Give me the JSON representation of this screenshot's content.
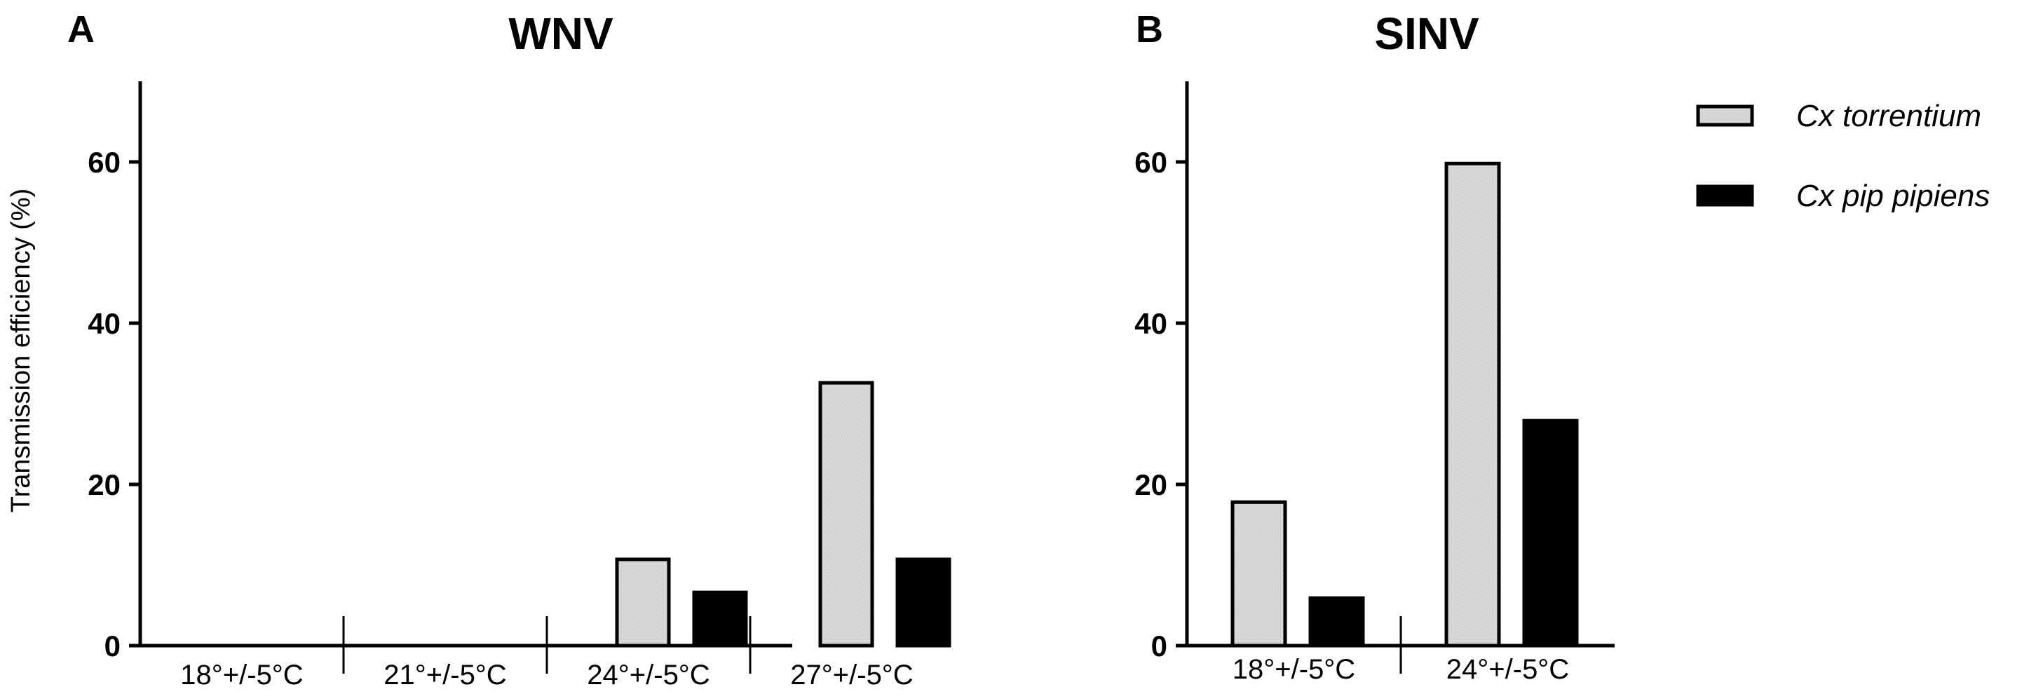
{
  "chart_data": [
    {
      "type": "bar",
      "panel": "A",
      "title": "WNV",
      "ylabel": "Transmission efficiency (%)",
      "xlabel": "",
      "ylim": [
        0,
        70
      ],
      "yticks": [
        0,
        20,
        40,
        60
      ],
      "categories": [
        "18°+/-5°C",
        "21°+/-5°C",
        "24°+/-5°C",
        "27°+/-5°C"
      ],
      "series": [
        {
          "name": "Cx torrentium",
          "color": "#d9d9d9",
          "values": [
            0,
            0,
            10.7,
            32.6
          ]
        },
        {
          "name": "Cx pip pipiens",
          "color": "#000000",
          "values": [
            0,
            0,
            6.6,
            10.7
          ]
        }
      ]
    },
    {
      "type": "bar",
      "panel": "B",
      "title": "SINV",
      "ylabel": "",
      "xlabel": "",
      "ylim": [
        0,
        70
      ],
      "yticks": [
        0,
        20,
        40,
        60
      ],
      "categories": [
        "18°+/-5°C",
        "24°+/-5°C"
      ],
      "series": [
        {
          "name": "Cx torrentium",
          "color": "#d9d9d9",
          "values": [
            17.8,
            59.8
          ]
        },
        {
          "name": "Cx pip pipiens",
          "color": "#000000",
          "values": [
            5.9,
            27.9
          ]
        }
      ]
    }
  ],
  "legend": {
    "position": "right",
    "items": [
      {
        "label": "Cx torrentium",
        "color": "#d9d9d9"
      },
      {
        "label": "Cx pip pipiens",
        "color": "#000000"
      }
    ]
  }
}
